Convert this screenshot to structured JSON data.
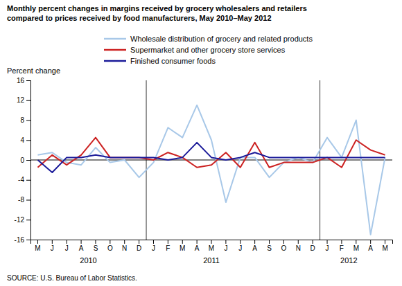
{
  "chart_data": {
    "type": "line",
    "title": "Monthly percent changes in margins received by grocery wholesalers and retailers\ncompared to prices received by food manufacturers, May 2010–May 2012",
    "y_label": "Percent change",
    "source": "SOURCE: U.S. Bureau of Labor Statistics.",
    "categories": [
      "M",
      "J",
      "J",
      "A",
      "S",
      "O",
      "N",
      "D",
      "J",
      "F",
      "M",
      "A",
      "M",
      "J",
      "J",
      "A",
      "S",
      "O",
      "N",
      "D",
      "J",
      "F",
      "M",
      "A",
      "M"
    ],
    "annotations": [
      {
        "text": "2010",
        "x": 3.5
      },
      {
        "text": "2011",
        "x": 12.0
      },
      {
        "text": "2012",
        "x": 21.5
      }
    ],
    "vlines": [
      7.5,
      19.5
    ],
    "ylim": [
      -16,
      16
    ],
    "yticks": [
      -16,
      -12,
      -8,
      -4,
      0,
      4,
      8,
      12,
      16
    ],
    "grid": false,
    "legend": "top",
    "series": [
      {
        "name": "Wholesale distribution of grocery and related products",
        "color": "#a8c8e8",
        "values": [
          1.0,
          1.5,
          -0.5,
          -1.0,
          2.5,
          -0.5,
          0.0,
          -3.5,
          -0.5,
          6.5,
          4.5,
          11.0,
          4.0,
          -8.5,
          0.5,
          0.5,
          -3.5,
          -0.5,
          0.5,
          -0.5,
          4.5,
          0.5,
          8.0,
          -15.0,
          0.5
        ]
      },
      {
        "name": "Supermarket and other grocery store services",
        "color": "#cc2222",
        "values": [
          -1.5,
          1.0,
          -1.0,
          1.0,
          4.5,
          0.5,
          0.5,
          0.5,
          0.0,
          1.5,
          0.5,
          -1.5,
          -1.0,
          1.5,
          -1.5,
          3.5,
          -1.5,
          -0.5,
          -0.5,
          -0.5,
          0.5,
          -1.5,
          4.0,
          2.0,
          1.0
        ]
      },
      {
        "name": "Finished consumer foods",
        "color": "#1a1a99",
        "values": [
          0.0,
          -2.5,
          0.5,
          0.5,
          1.0,
          0.5,
          0.5,
          0.5,
          0.5,
          0.0,
          0.5,
          3.5,
          0.5,
          0.0,
          0.5,
          1.5,
          0.5,
          0.5,
          0.5,
          0.5,
          0.5,
          0.5,
          0.5,
          0.5,
          0.5
        ]
      }
    ]
  }
}
